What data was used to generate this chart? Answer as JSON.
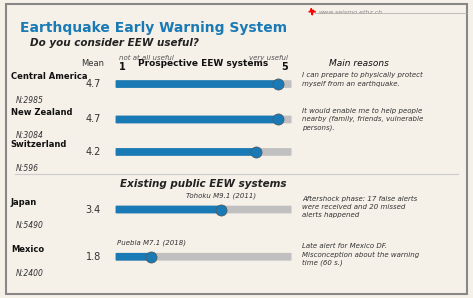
{
  "title": "Earthquake Early Warning System",
  "title_color": "#1a7ab5",
  "background_color": "#f5f0e8",
  "border_color": "#888888",
  "subtitle1": "Do you consider EEW useful?",
  "subtitle2": "Existing public EEW systems",
  "col_mean": "Mean",
  "col_not_useful": "not at all useful",
  "col_1": "1",
  "col_scale_label": "Prospective EEW systems",
  "col_very_useful": "very useful",
  "col_5": "5",
  "col_main_reasons": "Main reasons",
  "prospective_rows": [
    {
      "label1": "Central America",
      "label2": "N:2985",
      "mean": 4.7,
      "reason": "I can prepare to physically protect\nmyself from an earthquake."
    },
    {
      "label1": "New Zealand",
      "label2": "N:3084",
      "mean": 4.7,
      "reason": "It would enable me to help people\nnearby (family, friends, vulnerable\npersons)."
    },
    {
      "label1": "Switzerland",
      "label2": "N:596",
      "mean": 4.2,
      "reason": ""
    }
  ],
  "existing_rows": [
    {
      "label1": "Japan",
      "label2": "N:5490",
      "mean": 3.4,
      "event_label": "Tohoku M9.1 (2011)",
      "reason": "Aftershock phase: 17 false alerts\nwere received and 20 missed\nalerts happened"
    },
    {
      "label1": "Mexico",
      "label2": "N:2400",
      "mean": 1.8,
      "event_label": "Puebla M7.1 (2018)",
      "reason": "Late alert for Mexico DF.\nMisconception about the warning\ntime (60 s.)"
    }
  ],
  "bar_color": "#1a7ab5",
  "bar_bg_color": "#c0c0c0",
  "dot_color": "#1a7ab5",
  "dot_edge_color": "#555555",
  "scale_min": 1,
  "scale_max": 5,
  "website": "www.seismo.ethz.ch"
}
